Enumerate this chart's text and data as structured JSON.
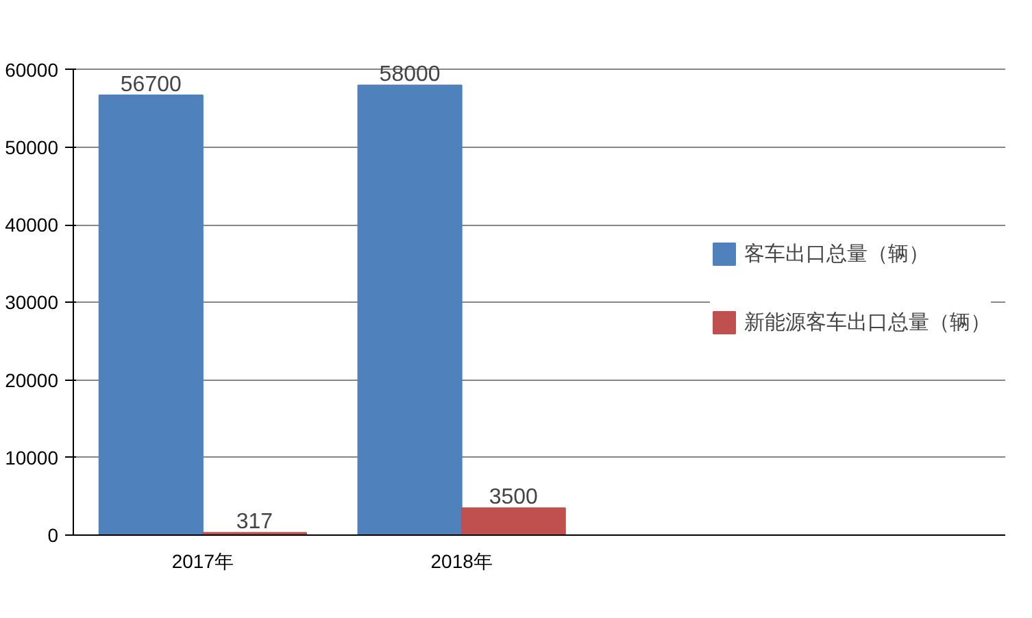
{
  "chart_data": {
    "type": "bar",
    "categories": [
      "2017年",
      "2018年"
    ],
    "series": [
      {
        "name": "客车出口总量（辆）",
        "color": "#4f81bd",
        "values": [
          56700,
          58000
        ]
      },
      {
        "name": "新能源客车出口总量（辆）",
        "color": "#c0504d",
        "values": [
          317,
          3500
        ]
      }
    ],
    "ylim": [
      0,
      60000
    ],
    "yticks": [
      0,
      10000,
      20000,
      30000,
      40000,
      50000,
      60000
    ],
    "grid": "y",
    "legend": "right",
    "data_labels": true
  }
}
